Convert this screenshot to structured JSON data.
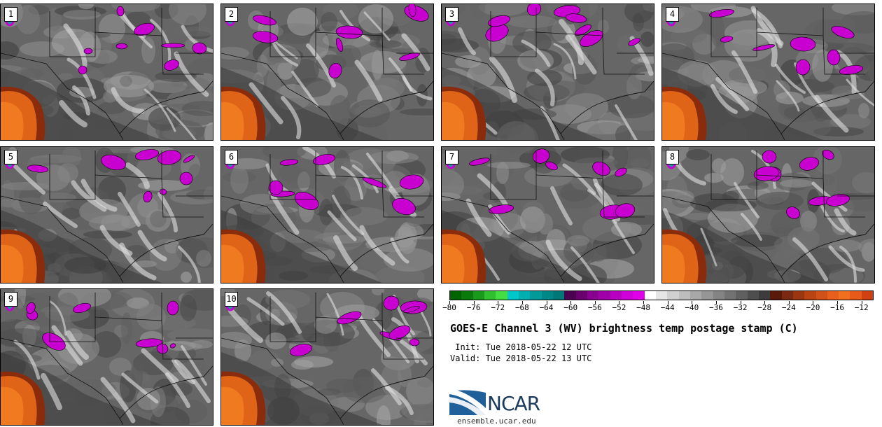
{
  "members": [
    "1",
    "2",
    "3",
    "4",
    "5",
    "6",
    "7",
    "8",
    "9",
    "10"
  ],
  "colorbar": {
    "colors": [
      "#006400",
      "#0a7a0a",
      "#1a9a1a",
      "#2fbf2f",
      "#44dd44",
      "#00c8c8",
      "#00b0b0",
      "#009a9a",
      "#008888",
      "#007878",
      "#4b0050",
      "#6a0070",
      "#880090",
      "#a000a8",
      "#b800c0",
      "#d000d8",
      "#e000e8",
      "#ffffff",
      "#e6e6e6",
      "#d0d0d0",
      "#bdbdbd",
      "#a8a8a8",
      "#969696",
      "#848484",
      "#727272",
      "#606060",
      "#4e4e4e",
      "#3c3c3c",
      "#5a1a0a",
      "#7a2a10",
      "#9a3610",
      "#b84414",
      "#d05218",
      "#e8601c",
      "#f07020",
      "#e85a1a",
      "#d04010"
    ],
    "tick_labels": [
      "−80",
      "−76",
      "−72",
      "−68",
      "−64",
      "−60",
      "−56",
      "−52",
      "−48",
      "−44",
      "−40",
      "−36",
      "−32",
      "−28",
      "−24",
      "−20",
      "−16",
      "−12"
    ],
    "tick_values": [
      -80,
      -76,
      -72,
      -68,
      -64,
      -60,
      -56,
      -52,
      -48,
      -44,
      -40,
      -36,
      -32,
      -28,
      -24,
      -20,
      -16,
      -12
    ],
    "range": [
      -80,
      -10
    ]
  },
  "title": "GOES-E Channel 3 (WV) brightness temp postage stamp (C)",
  "init": " Init: Tue 2018-05-22 12 UTC",
  "valid": "Valid: Tue 2018-05-22 13 UTC",
  "logo": {
    "text": "NCAR",
    "url": "ensemble.ucar.edu"
  }
}
